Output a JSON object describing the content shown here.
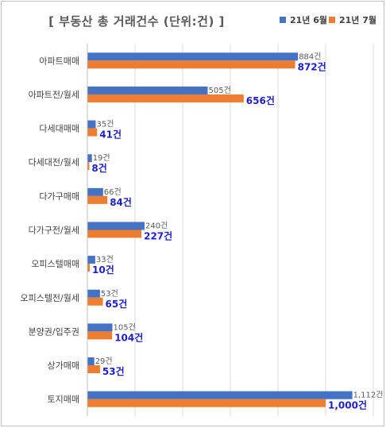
{
  "chart_data": {
    "type": "bar",
    "orientation": "horizontal",
    "title": "[ 부동산 총 거래건수 (단위:건) ]",
    "categories": [
      "아파트매매",
      "아파트전/월세",
      "다세대매매",
      "다세대전/월세",
      "다가구매매",
      "다가구전/월세",
      "오피스텔매매",
      "오피스텔전/월세",
      "분양권/입주권",
      "상가매매",
      "토지매매"
    ],
    "series": [
      {
        "name": "21년 6월",
        "color": "#4472C4",
        "values": [
          884,
          505,
          35,
          19,
          66,
          240,
          33,
          53,
          105,
          29,
          1112
        ],
        "labels": [
          "884건",
          "505건",
          "35건",
          "19건",
          "66건",
          "240건",
          "33건",
          "53건",
          "105건",
          "29건",
          "1,112건"
        ]
      },
      {
        "name": "21년 7월",
        "color": "#ED7D31",
        "values": [
          872,
          656,
          41,
          8,
          84,
          227,
          10,
          65,
          104,
          53,
          1000
        ],
        "labels": [
          "872건",
          "656건",
          "41건",
          "8건",
          "84건",
          "227건",
          "10건",
          "65건",
          "104건",
          "53건",
          "1,000건"
        ]
      }
    ],
    "xlim": [
      0,
      1200
    ],
    "grid": true,
    "legend_position": "top-right"
  }
}
